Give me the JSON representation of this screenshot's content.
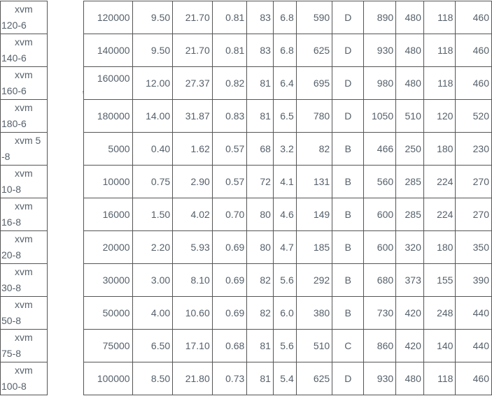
{
  "colors": {
    "background": "#ffffff",
    "border": "#555555",
    "text": "#55606a"
  },
  "table": {
    "rows": [
      {
        "model": "xvm\n120-6",
        "values": [
          "120000",
          "9.50",
          "21.70",
          "0.81",
          "83",
          "6.8",
          "590",
          "D",
          "890",
          "480",
          "118",
          "460"
        ]
      },
      {
        "model": "xvm\n140-6",
        "values": [
          "140000",
          "9.50",
          "21.70",
          "0.81",
          "83",
          "6.8",
          "625",
          "D",
          "930",
          "480",
          "118",
          "460"
        ]
      },
      {
        "model": "xvm\n160-6",
        "note": ",",
        "values": [
          "160000",
          "12.00",
          "27.37",
          "0.82",
          "81",
          "6.4",
          "695",
          "D",
          "980",
          "480",
          "118",
          "460"
        ]
      },
      {
        "model": "xvm\n180-6",
        "values": [
          "180000",
          "14.00",
          "31.87",
          "0.83",
          "81",
          "6.5",
          "780",
          "D",
          "1050",
          "510",
          "120",
          "520"
        ]
      },
      {
        "model": "xvm 5\n-8",
        "values": [
          "5000",
          "0.40",
          "1.62",
          "0.57",
          "68",
          "3.2",
          "82",
          "B",
          "466",
          "250",
          "180",
          "230"
        ]
      },
      {
        "model": "xvm\n10-8",
        "values": [
          "10000",
          "0.75",
          "2.90",
          "0.57",
          "72",
          "4.1",
          "131",
          "B",
          "560",
          "285",
          "224",
          "270"
        ]
      },
      {
        "model": "xvm\n16-8",
        "values": [
          "16000",
          "1.50",
          "4.02",
          "0.70",
          "80",
          "4.6",
          "149",
          "B",
          "600",
          "285",
          "224",
          "270"
        ]
      },
      {
        "model": "xvm\n20-8",
        "values": [
          "20000",
          "2.20",
          "5.93",
          "0.69",
          "80",
          "4.7",
          "185",
          "B",
          "600",
          "320",
          "180",
          "350"
        ]
      },
      {
        "model": "xvm\n30-8",
        "values": [
          "30000",
          "3.00",
          "8.10",
          "0.69",
          "82",
          "5.6",
          "292",
          "B",
          "680",
          "373",
          "155",
          "390"
        ]
      },
      {
        "model": "xvm\n50-8",
        "values": [
          "50000",
          "4.00",
          "10.60",
          "0.69",
          "82",
          "6.0",
          "380",
          "B",
          "730",
          "420",
          "248",
          "440"
        ]
      },
      {
        "model": "xvm\n75-8",
        "values": [
          "75000",
          "6.50",
          "17.10",
          "0.68",
          "81",
          "5.6",
          "510",
          "C",
          "860",
          "420",
          "140",
          "440"
        ]
      },
      {
        "model": "xvm\n100-8",
        "values": [
          "100000",
          "8.50",
          "21.80",
          "0.73",
          "81",
          "5.4",
          "625",
          "D",
          "930",
          "480",
          "118",
          "460"
        ]
      }
    ]
  }
}
